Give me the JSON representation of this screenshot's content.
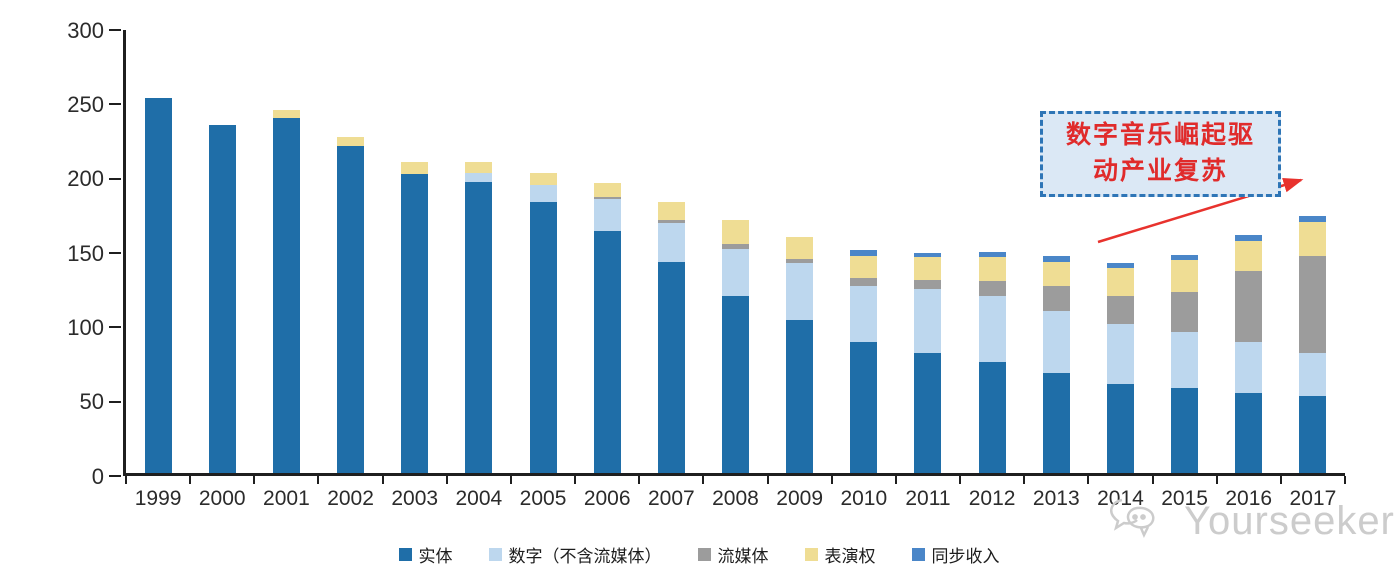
{
  "chart_data": {
    "type": "bar",
    "subtype": "stacked",
    "title": "",
    "xlabel": "",
    "ylabel": "",
    "ylim": [
      0,
      300
    ],
    "yticks": [
      0,
      50,
      100,
      150,
      200,
      250,
      300
    ],
    "grid": false,
    "legend_position": "bottom",
    "categories": [
      "1999",
      "2000",
      "2001",
      "2002",
      "2003",
      "2004",
      "2005",
      "2006",
      "2007",
      "2008",
      "2009",
      "2010",
      "2011",
      "2012",
      "2013",
      "2014",
      "2015",
      "2016",
      "2017"
    ],
    "series": [
      {
        "name": "实体",
        "color": "#1F6EA8",
        "values": [
          252,
          234,
          239,
          220,
          201,
          196,
          182,
          163,
          142,
          119,
          103,
          88,
          81,
          75,
          67,
          60,
          57,
          54,
          52
        ]
      },
      {
        "name": "数字（不含流媒体）",
        "color": "#BDD7EE",
        "values": [
          0,
          0,
          0,
          0,
          0,
          6,
          12,
          21,
          26,
          32,
          38,
          38,
          43,
          44,
          42,
          40,
          38,
          34,
          29
        ]
      },
      {
        "name": "流媒体",
        "color": "#9C9C9C",
        "values": [
          0,
          0,
          0,
          0,
          0,
          0,
          0,
          2,
          2,
          3,
          3,
          5,
          6,
          10,
          17,
          19,
          27,
          48,
          65
        ]
      },
      {
        "name": "表演权",
        "color": "#EFDD94",
        "values": [
          0,
          0,
          5,
          6,
          8,
          7,
          8,
          9,
          12,
          16,
          15,
          15,
          15,
          16,
          16,
          19,
          21,
          20,
          23
        ]
      },
      {
        "name": "同步收入",
        "color": "#4A86C8",
        "values": [
          0,
          0,
          0,
          0,
          0,
          0,
          0,
          0,
          0,
          0,
          0,
          4,
          3,
          4,
          4,
          3,
          4,
          4,
          4
        ]
      }
    ]
  },
  "axis": {
    "line_color": "#1f1f1f",
    "tick_label_color": "#2b2b2b"
  },
  "annotation": {
    "line1": "数字音乐崛起驱",
    "line2": "动产业复苏",
    "text_color": "#E02B2B",
    "box_fill": "#DBE8F5",
    "box_border": "#2E75B6",
    "arrow_color": "#E8322D"
  },
  "watermark": {
    "text": "Yourseeker",
    "color": "#cccccc"
  }
}
